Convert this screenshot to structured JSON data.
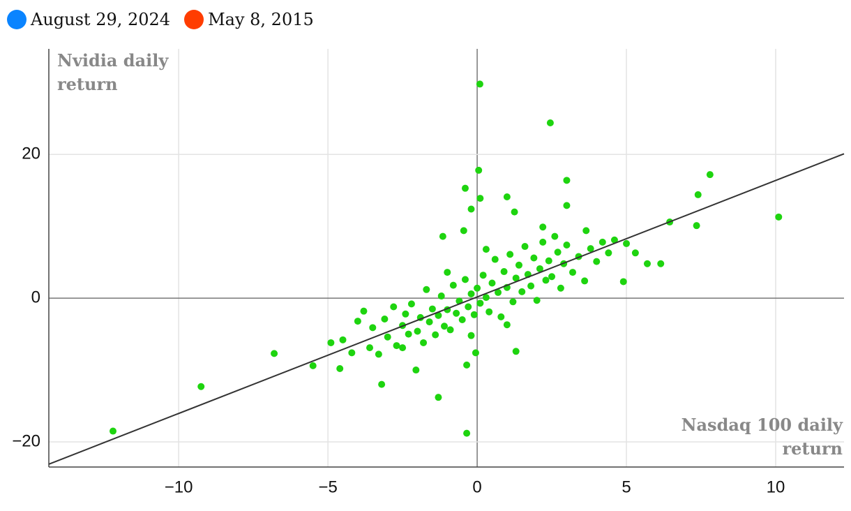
{
  "chart_data": {
    "type": "scatter",
    "legend": [
      {
        "label": "August 29, 2024",
        "color": "#0a84ff"
      },
      {
        "label": "May 8, 2015",
        "color": "#ff3d00"
      }
    ],
    "x_label": "Nasdaq 100 daily return",
    "y_label": "Nvidia daily return",
    "color": "#1ed40f",
    "x": [
      0.09,
      2.45,
      0.05,
      -0.4,
      -0.2,
      0.1,
      1.0,
      1.25,
      3.0,
      3.0,
      7.8,
      7.4,
      10.1,
      6.45,
      7.35,
      5.7,
      6.15,
      4.9,
      5.3,
      5.0,
      -12.2,
      -9.25,
      -6.8,
      -5.5,
      -4.6,
      -3.2,
      -1.3,
      -0.35,
      -0.35,
      -2.05,
      1.3,
      -0.05,
      -1.15,
      -0.45,
      2.2,
      3.65,
      -4.9,
      -4.5,
      -4.2,
      -4.0,
      -3.8,
      -3.6,
      -3.5,
      -3.3,
      -3.1,
      -3.0,
      -2.8,
      -2.7,
      -2.5,
      -2.4,
      -2.3,
      -2.2,
      -2.0,
      -1.9,
      -1.8,
      -1.7,
      -1.6,
      -1.5,
      -1.4,
      -1.3,
      -1.2,
      -1.1,
      -1.0,
      -0.9,
      -0.8,
      -0.7,
      -0.6,
      -0.5,
      -0.4,
      -0.3,
      -0.2,
      -0.1,
      0.0,
      0.1,
      0.2,
      0.3,
      0.4,
      0.5,
      0.6,
      0.7,
      0.8,
      0.9,
      1.0,
      1.1,
      1.2,
      1.3,
      1.4,
      1.5,
      1.6,
      1.7,
      1.8,
      1.9,
      2.0,
      2.1,
      2.2,
      2.3,
      2.4,
      2.5,
      2.7,
      2.8,
      2.9,
      3.0,
      3.2,
      3.4,
      3.6,
      3.8,
      4.0,
      4.2,
      4.4,
      4.6,
      -0.2,
      0.3,
      -1.0,
      1.0,
      -2.5,
      2.6
    ],
    "y": [
      29.8,
      24.4,
      17.8,
      15.3,
      12.4,
      13.9,
      14.1,
      12.0,
      16.4,
      12.9,
      17.2,
      14.4,
      11.3,
      10.6,
      10.1,
      4.8,
      4.8,
      2.3,
      6.3,
      7.6,
      -18.5,
      -12.3,
      -7.7,
      -9.4,
      -9.8,
      -12.0,
      -13.8,
      -18.8,
      -9.3,
      -10.0,
      -7.4,
      -7.6,
      8.6,
      9.4,
      9.9,
      9.4,
      -6.2,
      -5.8,
      -7.6,
      -3.2,
      -1.8,
      -6.9,
      -4.1,
      -7.8,
      -2.9,
      -5.4,
      -1.2,
      -6.6,
      -3.8,
      -2.2,
      -5.0,
      -0.8,
      -4.6,
      -2.7,
      -6.2,
      1.2,
      -3.3,
      -1.5,
      -5.1,
      -2.4,
      0.3,
      -3.9,
      -1.6,
      -4.4,
      1.8,
      -2.1,
      -0.4,
      -3.0,
      2.6,
      -1.2,
      0.6,
      -2.3,
      1.4,
      -0.7,
      3.2,
      0.1,
      -1.9,
      2.1,
      5.4,
      0.8,
      -2.6,
      3.7,
      1.5,
      6.1,
      -0.5,
      2.8,
      4.6,
      0.9,
      7.2,
      3.3,
      1.7,
      5.6,
      -0.3,
      4.1,
      7.8,
      2.5,
      5.2,
      3.0,
      6.4,
      1.4,
      4.8,
      7.4,
      3.6,
      5.8,
      2.4,
      6.9,
      5.1,
      7.8,
      6.3,
      8.1,
      -5.2,
      6.8,
      3.6,
      -3.7,
      -6.9,
      8.6
    ],
    "trend_line": {
      "x": [
        -14.35,
        12.29
      ],
      "y": [
        -23.1,
        20.1
      ]
    },
    "xlim": [
      -14.35,
      12.29
    ],
    "ylim": [
      -23.5,
      34.7
    ],
    "xticks": [
      {
        "value": -10,
        "label": "−10"
      },
      {
        "value": -5,
        "label": "−5"
      },
      0,
      5,
      10
    ],
    "yticks": [
      {
        "value": -20,
        "label": "−20"
      },
      0,
      20
    ],
    "grid": true
  }
}
